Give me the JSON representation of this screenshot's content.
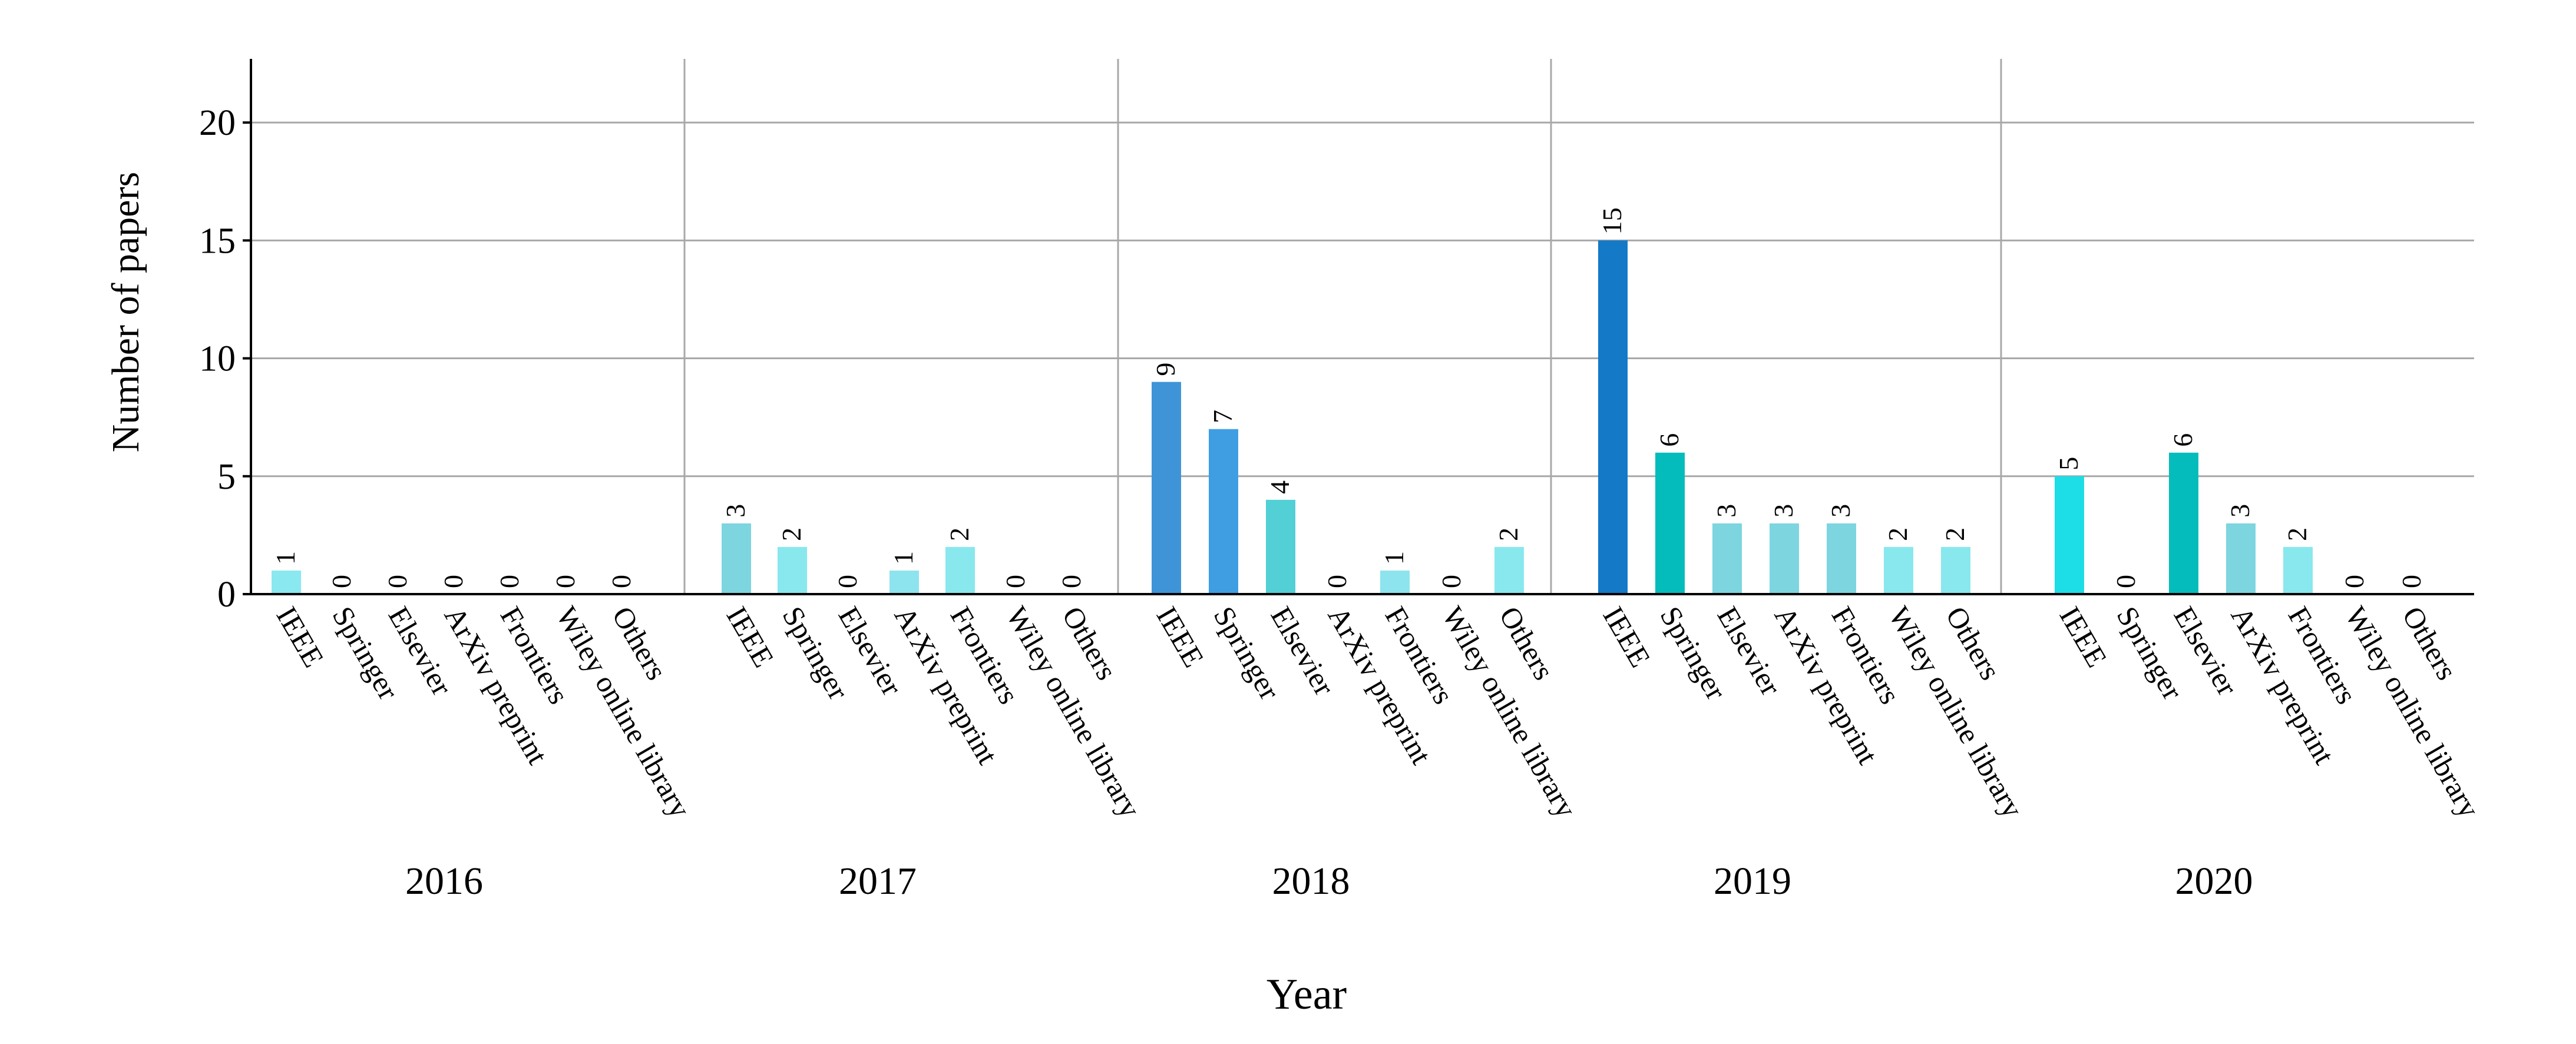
{
  "chart_data": {
    "type": "bar",
    "ylabel": "Number of papers",
    "xlabel": "Year",
    "ylim": [
      0,
      22.7
    ],
    "yticks": [
      0,
      5,
      10,
      15,
      20
    ],
    "grid": true,
    "categories": [
      "IEEE",
      "Springer",
      "Elsevier",
      "ArXiv preprint",
      "Frontiers",
      "Wiley online library",
      "Others"
    ],
    "groups": [
      {
        "year": "2016",
        "values": [
          1,
          0,
          0,
          0,
          0,
          0,
          0
        ]
      },
      {
        "year": "2017",
        "values": [
          3,
          2,
          0,
          1,
          2,
          0,
          0
        ]
      },
      {
        "year": "2018",
        "values": [
          9,
          7,
          4,
          0,
          1,
          0,
          2
        ]
      },
      {
        "year": "2019",
        "values": [
          15,
          6,
          3,
          3,
          3,
          2,
          2
        ]
      },
      {
        "year": "2020",
        "values": [
          5,
          0,
          6,
          3,
          2,
          0,
          0
        ]
      }
    ],
    "colors": [
      [
        "#8ae8f0",
        "#ffffff",
        "#ffffff",
        "#ffffff",
        "#ffffff",
        "#ffffff",
        "#ffffff"
      ],
      [
        "#7dd5df",
        "#88e8ee",
        "#ffffff",
        "#8de4ee",
        "#88e8ee",
        "#ffffff",
        "#ffffff"
      ],
      [
        "#3f94d8",
        "#3f9ee2",
        "#52d0d5",
        "#ffffff",
        "#8de4ee",
        "#ffffff",
        "#88e8ee"
      ],
      [
        "#1479c6",
        "#05bcbc",
        "#7dd5df",
        "#7dd5df",
        "#7dd5df",
        "#88e8ee",
        "#88e8ee"
      ],
      [
        "#1ddde6",
        "#ffffff",
        "#05bcbc",
        "#7dd5df",
        "#88e8ee",
        "#ffffff",
        "#ffffff"
      ]
    ]
  }
}
